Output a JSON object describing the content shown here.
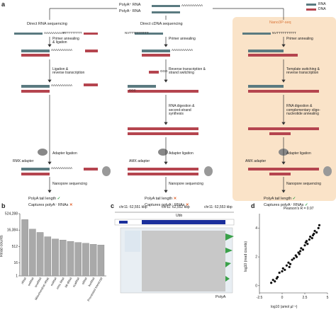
{
  "legend": {
    "rna": "RNA",
    "dna": "DNA"
  },
  "panel_a": {
    "letter": "a",
    "inputs": {
      "polya_plus": "PolyA⁺ RNA",
      "polya_minus": "PolyA⁻ RNA"
    },
    "col1": {
      "title": "Direct RNA sequencing",
      "step1": "Primer annealing\n& ligation",
      "step2": "Ligation &\nreverse transcription",
      "step3": "Adapter ligation",
      "adapter": "RMX adapter",
      "step4": "Nanopore sequencing",
      "res1": "PolyA tail length",
      "res2": "Captures polyA⁻ RNAs"
    },
    "col2": {
      "title": "Direct cDNA sequencing",
      "step1": "Primer annealing",
      "step2": "Reverse transcription &\nstrand switching",
      "step3": "RNA digestion &\nsecond-strand\nsynthesis",
      "step4": "Adapter ligation",
      "adapter": "AMX adapter",
      "step5": "Nanopore sequencing",
      "res1": "PolyA tail length",
      "res2": "Captures polyA⁻ RNAs"
    },
    "col3": {
      "title": "Nano3P-seq",
      "step1": "Primer annealing",
      "step2": "Template switching &\nreverse transcription",
      "step3": "RNA digestion &\ncomplementary oligo-\nnucleotide annealing",
      "step4": "Adapter ligation",
      "adapter": "AMX adapter",
      "step5": "Nanopore sequencing",
      "res1": "PolyA tail length",
      "res2": "Captures polyA⁻ RNAs"
    },
    "seq_aaa": "AAAAAAAAAA",
    "seq_ttt": "TTTTTTTTTT",
    "seq_nv": "NVTTTTTTTTTT",
    "seq_ggg": "GGG",
    "seq_ccc": "CCC"
  },
  "panel_b": {
    "letter": "b",
    "ylabel": "Read counts",
    "chart_data": {
      "type": "bar",
      "categories": [
        "rRNA",
        "snRNA",
        "snoRNA",
        "Mitochondrial rRNA",
        "miRNA",
        "misc RNA",
        "Mt tRNA",
        "scaRNA",
        "sRNA",
        "lncRNA",
        "Processed transcript"
      ],
      "values": [
        150000,
        20000,
        10000,
        4000,
        2500,
        2000,
        1500,
        1200,
        1000,
        800,
        700
      ],
      "yticks": [
        "524,288",
        "16,384",
        "512",
        "16",
        "1"
      ],
      "ylim": [
        1,
        524288
      ],
      "yscale": "log"
    }
  },
  "panel_c": {
    "letter": "c",
    "coords": [
      "chr11: 62,551 kbp",
      "chr11: 62,552 kbp",
      "chr11: 62,553 kbp"
    ],
    "gene": "Ubb",
    "polya_label": "PolyA"
  },
  "panel_d": {
    "letter": "d",
    "annotation": "Pearson's R = 0.97",
    "chart_data": {
      "type": "scatter",
      "xlabel": "log10 (amol µl⁻¹)",
      "ylabel": "log10 (read counts)",
      "xticks": [
        "-2.5",
        "0",
        "2.5",
        "5"
      ],
      "yticks": [
        "0",
        "2",
        "4"
      ],
      "xlim": [
        -2.5,
        5
      ],
      "ylim": [
        -0.5,
        5
      ],
      "points": [
        [
          -1.2,
          0.2
        ],
        [
          -1.0,
          0.4
        ],
        [
          -0.8,
          0.3
        ],
        [
          -0.5,
          0.6
        ],
        [
          -0.3,
          0.9
        ],
        [
          0,
          1.0
        ],
        [
          0.1,
          1.2
        ],
        [
          0.3,
          1.1
        ],
        [
          0.5,
          1.4
        ],
        [
          0.7,
          1.6
        ],
        [
          0.9,
          1.5
        ],
        [
          1.1,
          1.8
        ],
        [
          1.3,
          1.9
        ],
        [
          1.5,
          2.1
        ],
        [
          1.6,
          2.0
        ],
        [
          1.8,
          2.3
        ],
        [
          2.0,
          2.4
        ],
        [
          2.1,
          2.6
        ],
        [
          2.3,
          2.5
        ],
        [
          2.5,
          2.8
        ],
        [
          2.6,
          3.0
        ],
        [
          2.8,
          2.9
        ],
        [
          3.0,
          3.2
        ],
        [
          3.1,
          3.4
        ],
        [
          3.3,
          3.3
        ],
        [
          3.5,
          3.6
        ],
        [
          3.6,
          3.8
        ],
        [
          3.8,
          3.7
        ],
        [
          4.0,
          4.0
        ],
        [
          4.1,
          4.2
        ],
        [
          -0.6,
          0.5
        ],
        [
          0.8,
          1.3
        ],
        [
          1.9,
          2.2
        ],
        [
          2.7,
          3.1
        ],
        [
          3.4,
          3.5
        ]
      ]
    }
  }
}
